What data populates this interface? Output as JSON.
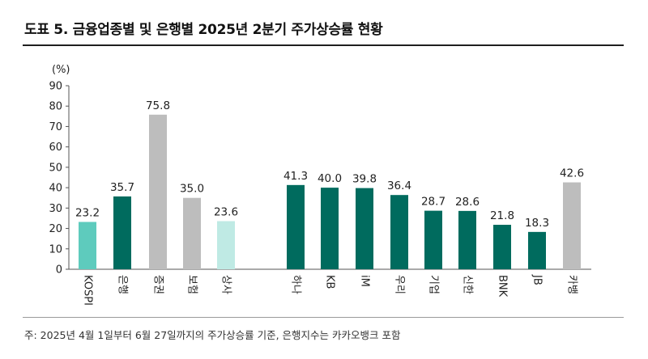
{
  "title": "도표 5. 금융업종별 및 은행별 2025년 2분기 주가상승률 현황",
  "footnote": "주: 2025년 4월 1일부터 6월 27일까지의 주가상승률 기준, 은행지수는 카카오뱅크 포함",
  "colors": {
    "teal_light": "#5ecbbd",
    "teal_dark": "#006b5e",
    "gray": "#bdbdbd",
    "mint": "#bfeae4",
    "axis": "#555555"
  },
  "chart_data": {
    "type": "bar",
    "title": "도표 5. 금융업종별 및 은행별 2025년 2분기 주가상승률 현황",
    "unit_label": "(%)",
    "ylim": [
      0,
      90
    ],
    "yticks": [
      0,
      10,
      20,
      30,
      40,
      50,
      60,
      70,
      80,
      90
    ],
    "grid": false,
    "legend": "none",
    "categories": [
      "KOSPI",
      "은행",
      "증권",
      "보험",
      "상사",
      "하나",
      "KB",
      "iM",
      "우리",
      "기업",
      "신한",
      "BNK",
      "JB",
      "카뱅"
    ],
    "values": [
      23.2,
      35.7,
      75.8,
      35.0,
      23.6,
      41.3,
      40.0,
      39.8,
      36.4,
      28.7,
      28.6,
      21.8,
      18.3,
      42.6
    ],
    "value_labels": [
      "23.2",
      "35.7",
      "75.8",
      "35.0",
      "23.6",
      "41.3",
      "40.0",
      "39.8",
      "36.4",
      "28.7",
      "28.6",
      "21.8",
      "18.3",
      "42.6"
    ],
    "bar_colors": [
      "teal_light",
      "teal_dark",
      "gray",
      "gray",
      "mint",
      "teal_dark",
      "teal_dark",
      "teal_dark",
      "teal_dark",
      "teal_dark",
      "teal_dark",
      "teal_dark",
      "teal_dark",
      "gray"
    ],
    "category_label_rotation": "rotated 90 degrees clockwise"
  }
}
